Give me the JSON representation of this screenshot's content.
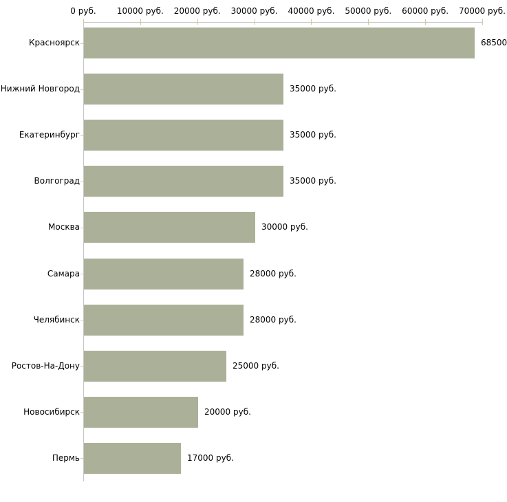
{
  "chart_data": {
    "type": "bar",
    "orientation": "horizontal",
    "title": "",
    "xlabel": "",
    "ylabel": "",
    "grid": false,
    "legend": false,
    "categories": [
      "Красноярск",
      "Нижний Новгород",
      "Екатеринбург",
      "Волгоград",
      "Москва",
      "Самара",
      "Челябинск",
      "Ростов-На-Дону",
      "Новосибирск",
      "Пермь"
    ],
    "values": [
      68500,
      35000,
      35000,
      35000,
      30000,
      28000,
      28000,
      25000,
      20000,
      17000
    ],
    "value_labels": [
      "68500",
      "35000 руб.",
      "35000 руб.",
      "35000 руб.",
      "30000 руб.",
      "28000 руб.",
      "28000 руб.",
      "25000 руб.",
      "20000 руб.",
      "17000 руб."
    ],
    "xlim": [
      0,
      70000
    ],
    "x_ticks": [
      0,
      10000,
      20000,
      30000,
      40000,
      50000,
      60000,
      70000
    ],
    "x_tick_labels": [
      "0 руб.",
      "10000 руб.",
      "20000 руб.",
      "30000 руб.",
      "40000 руб.",
      "50000 руб.",
      "60000 руб.",
      "70000 руб."
    ],
    "colors": {
      "bar": "#abb199",
      "axis_line": "#c6c6c6",
      "tick_mark": "#cccc99",
      "text": "#000000",
      "background": "#ffffff"
    }
  }
}
